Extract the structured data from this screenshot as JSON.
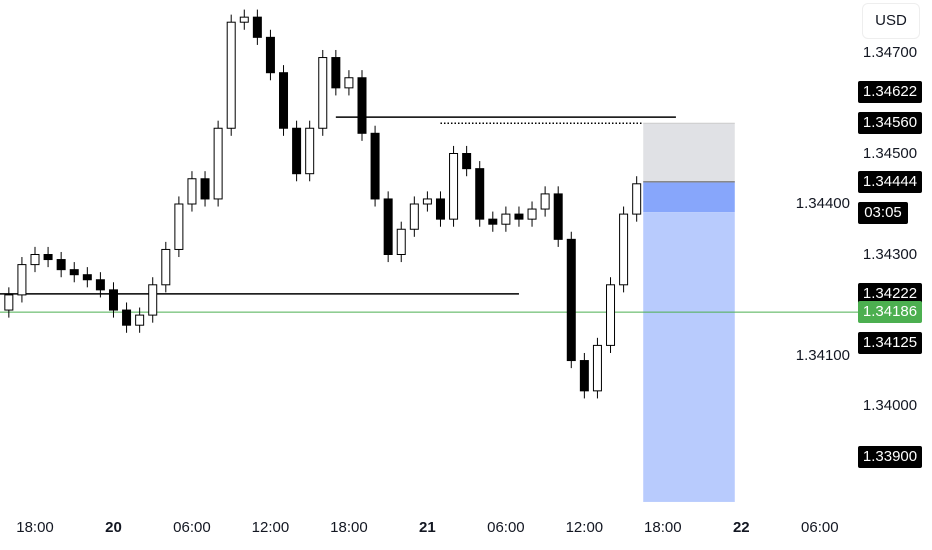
{
  "chart_data": {
    "type": "candlestick",
    "currency": "USD",
    "x_tick_labels": [
      {
        "label": "18:00",
        "time": "19 18:00",
        "bold": false
      },
      {
        "label": "20",
        "time": "20 00:00",
        "bold": true
      },
      {
        "label": "06:00",
        "time": "20 06:00",
        "bold": false
      },
      {
        "label": "12:00",
        "time": "20 12:00",
        "bold": false
      },
      {
        "label": "18:00",
        "time": "20 18:00",
        "bold": false
      },
      {
        "label": "21",
        "time": "21 00:00",
        "bold": true
      },
      {
        "label": "06:00",
        "time": "21 06:00",
        "bold": false
      },
      {
        "label": "12:00",
        "time": "21 12:00",
        "bold": false
      },
      {
        "label": "18:00",
        "time": "21 18:00",
        "bold": false
      },
      {
        "label": "22",
        "time": "22 00:00",
        "bold": true
      },
      {
        "label": "06:00",
        "time": "22 06:00",
        "bold": false
      }
    ],
    "y_tick_labels": [
      "1.34700",
      "1.34500",
      "1.34400",
      "1.34300",
      "1.34100",
      "1.34000"
    ],
    "ylim": [
      1.3378,
      1.348
    ],
    "grid": false,
    "series": {
      "start": "19 16:00",
      "interval_hours": 1,
      "close": [
        1.3422,
        1.3428,
        1.343,
        1.3429,
        1.3427,
        1.3426,
        1.3425,
        1.3423,
        1.3419,
        1.3416,
        1.3418,
        1.3424,
        1.3431,
        1.344,
        1.3445,
        1.3441,
        1.3455,
        1.3476,
        1.3477,
        1.3473,
        1.3466,
        1.3455,
        1.3446,
        1.3455,
        1.3469,
        1.3463,
        1.3465,
        1.3454,
        1.3441,
        1.343,
        1.3435,
        1.344,
        1.3441,
        1.3437,
        1.345,
        1.3447,
        1.3437,
        1.3436,
        1.3438,
        1.3437,
        1.3439,
        1.3442,
        1.3433,
        1.3409,
        1.3403,
        1.3412,
        1.3424,
        1.3438,
        1.3444
      ]
    },
    "price_labels": [
      {
        "value": "1.34622",
        "style": "black"
      },
      {
        "value": "1.34560",
        "style": "black"
      },
      {
        "value": "1.34444",
        "style": "black"
      },
      {
        "value": "1.34222",
        "style": "black"
      },
      {
        "value": "1.34186",
        "style": "green"
      },
      {
        "value": "1.34125",
        "style": "black"
      },
      {
        "value": "1.33900",
        "style": "black"
      }
    ],
    "countdown": "03:05",
    "horizontal_lines": [
      {
        "price": 1.34572,
        "from": "20 17:00",
        "to": "21 19:00",
        "style": "solid",
        "color": "#000000"
      },
      {
        "price": 1.3456,
        "from": "21 01:00",
        "to": "21 16:30",
        "style": "dotted",
        "color": "#000000"
      },
      {
        "price": 1.34222,
        "from": "19 15:00",
        "to": "21 07:00",
        "style": "solid",
        "color": "#000000"
      },
      {
        "price": 1.34186,
        "style": "solid",
        "color": "#4caf50",
        "full_width": true
      }
    ],
    "position_tool": {
      "from": "21 16:30",
      "to": "21 23:30",
      "stop": 1.3456,
      "entry": 1.34444,
      "current": 1.34384,
      "target": 1.3381,
      "stop_color": "#e0e1e5",
      "filled_color": "#87a6fb",
      "target_color": "#b8cbfd"
    },
    "colors": {
      "up": "#ffffff",
      "down": "#000000",
      "border": "#000000",
      "last_price": "#4caf50"
    }
  }
}
